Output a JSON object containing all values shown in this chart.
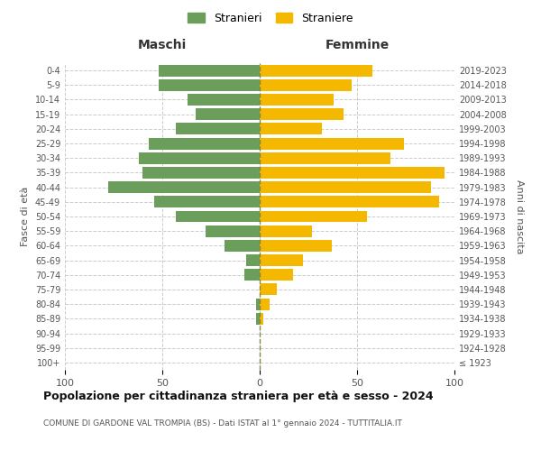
{
  "age_groups": [
    "100+",
    "95-99",
    "90-94",
    "85-89",
    "80-84",
    "75-79",
    "70-74",
    "65-69",
    "60-64",
    "55-59",
    "50-54",
    "45-49",
    "40-44",
    "35-39",
    "30-34",
    "25-29",
    "20-24",
    "15-19",
    "10-14",
    "5-9",
    "0-4"
  ],
  "birth_years": [
    "≤ 1923",
    "1924-1928",
    "1929-1933",
    "1934-1938",
    "1939-1943",
    "1944-1948",
    "1949-1953",
    "1954-1958",
    "1959-1963",
    "1964-1968",
    "1969-1973",
    "1974-1978",
    "1979-1983",
    "1984-1988",
    "1989-1993",
    "1994-1998",
    "1999-2003",
    "2004-2008",
    "2009-2013",
    "2014-2018",
    "2019-2023"
  ],
  "maschi": [
    0,
    0,
    0,
    2,
    2,
    0,
    8,
    7,
    18,
    28,
    43,
    54,
    78,
    60,
    62,
    57,
    43,
    33,
    37,
    52,
    52
  ],
  "femmine": [
    0,
    0,
    0,
    2,
    5,
    9,
    17,
    22,
    37,
    27,
    55,
    92,
    88,
    95,
    67,
    74,
    32,
    43,
    38,
    47,
    58
  ],
  "color_maschi": "#6a9e5a",
  "color_femmine": "#f5b800",
  "title": "Popolazione per cittadinanza straniera per età e sesso - 2024",
  "subtitle": "COMUNE DI GARDONE VAL TROMPIA (BS) - Dati ISTAT al 1° gennaio 2024 - TUTTITALIA.IT",
  "xlabel_left": "Maschi",
  "xlabel_right": "Femmine",
  "ylabel_left": "Fasce di età",
  "ylabel_right": "Anni di nascita",
  "legend_maschi": "Stranieri",
  "legend_femmine": "Straniere",
  "xlim": 100,
  "bg_color": "#ffffff",
  "grid_color": "#cccccc",
  "bar_height": 0.8
}
